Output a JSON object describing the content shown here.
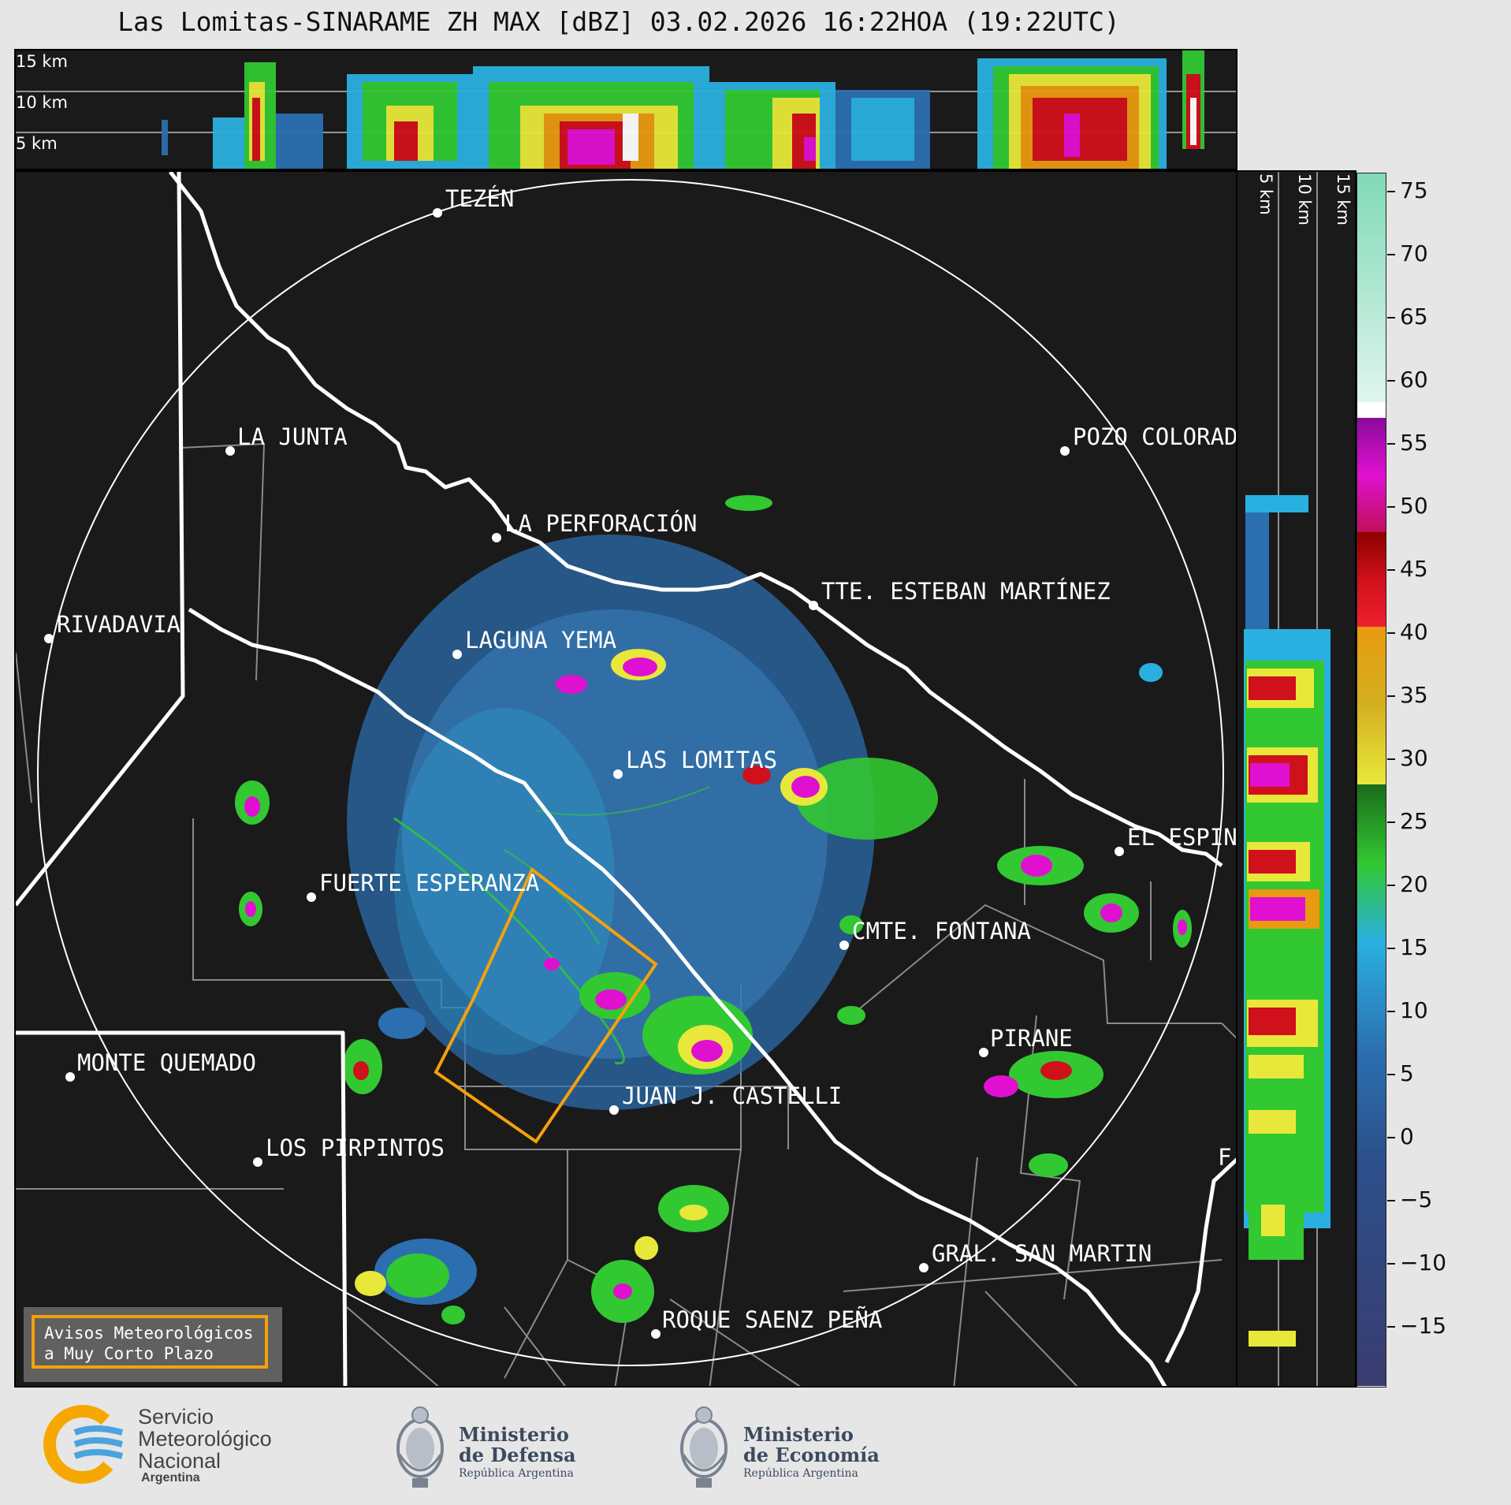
{
  "title": "Las Lomitas-SINARAME ZH MAX [dBZ] 03.02.2026 16:22HOA (19:22UTC)",
  "height_panel": {
    "top_labels": [
      "15 km",
      "10 km",
      "5 km"
    ],
    "side_labels": [
      "5 km",
      "10 km",
      "15 km"
    ]
  },
  "colorbar": {
    "ticks": [
      "75",
      "70",
      "65",
      "60",
      "55",
      "50",
      "45",
      "40",
      "35",
      "30",
      "25",
      "20",
      "15",
      "10",
      "5",
      "0",
      "−5",
      "−10",
      "−15"
    ],
    "range_dbz": [
      -20,
      77
    ],
    "colors": {
      "neg": "#3a3c70",
      "blue": "#2b6fb0",
      "cyan": "#2ab0e0",
      "green": "#32c832",
      "darkgreen": "#1a6b1a",
      "yellow": "#e8e83a",
      "orange": "#e89a10",
      "red": "#d0101a",
      "darkred": "#8b0000",
      "magenta": "#e010d0",
      "purple": "#8a0a9a",
      "white": "#ffffff",
      "mint": "#9fe6c8"
    }
  },
  "places": [
    {
      "name": "TEZÉN"
    },
    {
      "name": "LA JUNTA"
    },
    {
      "name": "POZO COLORADO"
    },
    {
      "name": "LA PERFORACIÓN"
    },
    {
      "name": "TTE. ESTEBAN MARTÍNEZ"
    },
    {
      "name": "RIVADAVIA"
    },
    {
      "name": "LAGUNA YEMA"
    },
    {
      "name": "LAS LOMITAS"
    },
    {
      "name": "EL ESPINILLO"
    },
    {
      "name": "FUERTE ESPERANZA"
    },
    {
      "name": "CMTE. FONTANA"
    },
    {
      "name": "PIRANE"
    },
    {
      "name": "MONTE QUEMADO"
    },
    {
      "name": "JUAN J. CASTELLI"
    },
    {
      "name": "LOS PIRPINTOS"
    },
    {
      "name": "GRAL. SAN MARTIN"
    },
    {
      "name": "ROQUE SAENZ PEÑA"
    },
    {
      "name": "F"
    }
  ],
  "avisos": {
    "line1": "Avisos Meteorológicos",
    "line2": "a Muy Corto Plazo"
  },
  "footer": {
    "smn": {
      "line1": "Servicio",
      "line2": "Meteorológico",
      "line3": "Nacional",
      "line4": "Argentina"
    },
    "defensa": {
      "line1": "Ministerio",
      "line2": "de Defensa",
      "line3": "República Argentina"
    },
    "economia": {
      "line1": "Ministerio",
      "line2": "de Economía",
      "line3": "República Argentina"
    }
  }
}
